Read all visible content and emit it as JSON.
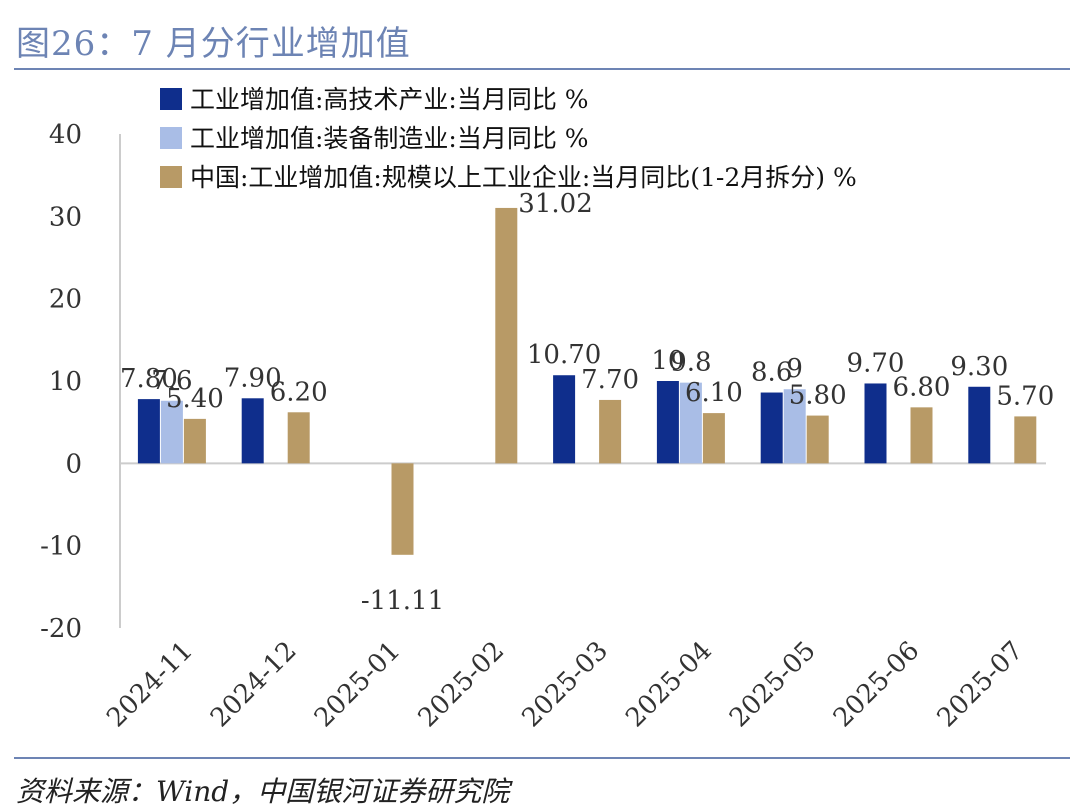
{
  "header": {
    "title": "图26：7 月分行业增加值"
  },
  "footer": {
    "source": "资料来源：Wind，中国银河证券研究院"
  },
  "chart_data": {
    "type": "bar",
    "categories": [
      "2024-11",
      "2024-12",
      "2025-01",
      "2025-02",
      "2025-03",
      "2025-04",
      "2025-05",
      "2025-06",
      "2025-07"
    ],
    "series": [
      {
        "name": "工业增加值:高技术产业:当月同比 %",
        "color": "#0f2e8c",
        "values": [
          7.8,
          7.9,
          null,
          null,
          10.7,
          10.0,
          8.6,
          9.7,
          9.3
        ],
        "labels": [
          "7.80",
          "7.90",
          "",
          "",
          "10.70",
          "10",
          "8.6",
          "9.70",
          "9.30"
        ]
      },
      {
        "name": "工业增加值:装备制造业:当月同比 %",
        "color": "#a9bde6",
        "values": [
          7.6,
          null,
          null,
          null,
          null,
          9.8,
          9.0,
          null,
          null
        ],
        "labels": [
          "7.6",
          "",
          "",
          "",
          "",
          "9.8",
          "9",
          "",
          ""
        ]
      },
      {
        "name": "中国:工业增加值:规模以上工业企业:当月同比(1-2月拆分) %",
        "color": "#b89a66",
        "values": [
          5.4,
          6.2,
          -11.11,
          31.02,
          7.7,
          6.1,
          5.8,
          6.8,
          5.7
        ],
        "labels": [
          "5.40",
          "6.20",
          "-11.11",
          "31.02",
          "7.70",
          "6.10",
          "5.80",
          "6.80",
          "5.70"
        ]
      }
    ],
    "ylim": [
      -20,
      40
    ],
    "yticks": [
      -20,
      -10,
      0,
      10,
      20,
      30,
      40
    ],
    "legend": "top-left",
    "grid": false
  }
}
